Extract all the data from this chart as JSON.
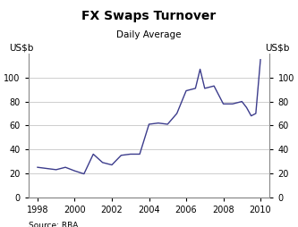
{
  "title": "FX Swaps Turnover",
  "subtitle": "Daily Average",
  "ylabel_left": "US$b",
  "ylabel_right": "US$b",
  "source": "Source: RBA",
  "line_color": "#3c3c8c",
  "background_color": "#ffffff",
  "grid_color": "#bbbbbb",
  "ylim": [
    0,
    120
  ],
  "yticks": [
    0,
    20,
    40,
    60,
    80,
    100
  ],
  "xlim": [
    1997.5,
    2010.5
  ],
  "xticks": [
    1998,
    2000,
    2002,
    2004,
    2006,
    2008,
    2010
  ],
  "x": [
    1998.0,
    1998.5,
    1999.0,
    1999.5,
    2000.0,
    2000.5,
    2001.0,
    2001.5,
    2002.0,
    2002.5,
    2003.0,
    2003.5,
    2004.0,
    2004.5,
    2005.0,
    2005.5,
    2006.0,
    2006.25,
    2006.5,
    2006.75,
    2007.0,
    2007.5,
    2008.0,
    2008.5,
    2009.0,
    2009.25,
    2009.5,
    2009.75,
    2010.0
  ],
  "y": [
    25,
    24,
    23,
    25,
    22,
    19.5,
    36,
    29,
    27,
    35,
    36,
    36,
    61,
    62,
    61,
    70,
    89,
    90,
    91,
    107,
    91,
    93,
    78,
    78,
    80,
    75,
    68,
    70,
    115
  ]
}
